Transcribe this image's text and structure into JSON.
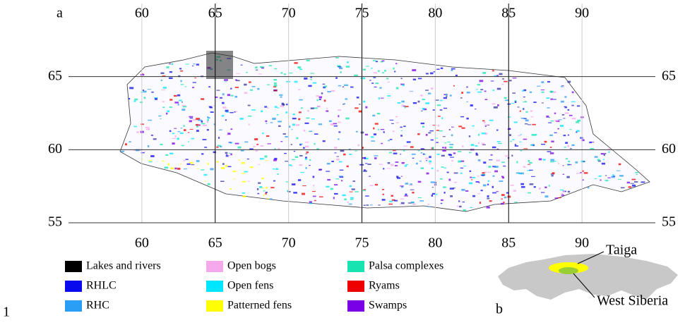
{
  "panel_a": {
    "label": "a",
    "xlim": [
      55,
      95
    ],
    "ylim": [
      55,
      70
    ],
    "xticks": [
      60,
      65,
      70,
      75,
      80,
      85,
      90
    ],
    "yticks": [
      55,
      60,
      65
    ]
  },
  "legend": [
    {
      "label": "Lakes and rivers",
      "color": "#000000"
    },
    {
      "label": "RHLC",
      "color": "#0a0aee"
    },
    {
      "label": "RHC",
      "color": "#2a9df4"
    },
    {
      "label": "Open bogs",
      "color": "#f6a8ec"
    },
    {
      "label": "Open fens",
      "color": "#00e6ff"
    },
    {
      "label": "Patterned fens",
      "color": "#ffff00"
    },
    {
      "label": "Palsa complexes",
      "color": "#17e3b0"
    },
    {
      "label": "Ryams",
      "color": "#ee0000"
    },
    {
      "label": "Swamps",
      "color": "#7a00e6"
    }
  ],
  "inset": {
    "label": "b",
    "taiga": "Taiga",
    "region": "West Siberia"
  },
  "line_number": "1"
}
